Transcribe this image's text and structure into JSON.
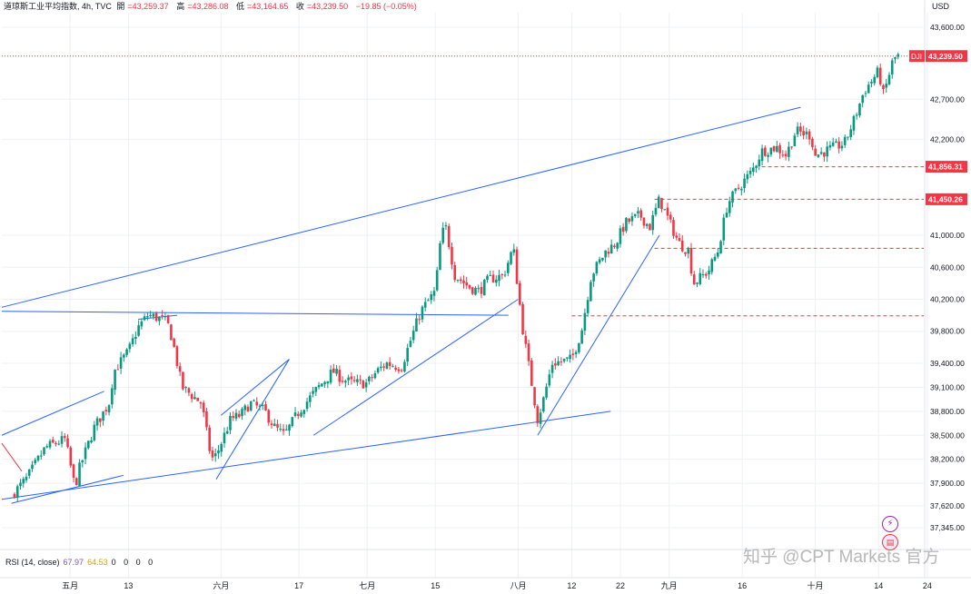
{
  "header": {
    "symbol": "道琼斯工业平均指数, 4h, TVC",
    "open_label": "開",
    "open": "=43,259.37",
    "high_label": "高",
    "high": "=43,286.08",
    "low_label": "低",
    "low": "=43,164.65",
    "close_label": "收",
    "close": "=43,239.50",
    "change": "−19.85 (−0.05%)"
  },
  "currency": "USD",
  "rsi": {
    "label": "RSI (14, close)",
    "value": "67.97",
    "ma": "64.53",
    "extra": "0 0 0 0"
  },
  "watermark": "知乎 @CPT Markets 官方",
  "colors": {
    "up": "#089981",
    "down": "#f23645",
    "trendline": "#2962ff",
    "level": "#f23645",
    "grid": "#eef0f4"
  },
  "icons": [
    "lightning-icon",
    "us-flag-icon"
  ],
  "chart_data": {
    "type": "candlestick",
    "title": "道琼斯工业平均指数, 4h, TVC",
    "ylabel": "USD",
    "y_ticks": [
      37345,
      37620,
      37900,
      38200,
      38500,
      38800,
      39100,
      39400,
      39800,
      40200,
      40600,
      41000,
      41450.26,
      41856.31,
      42200,
      42700,
      43239.5,
      43600
    ],
    "y_tick_labels": [
      "37,345.00",
      "37,620.00",
      "37,900.00",
      "38,200.00",
      "38,500.00",
      "38,800.00",
      "39,100.00",
      "39,400.00",
      "39,800.00",
      "40,200.00",
      "40,600.00",
      "41,000.00",
      "41,450.26",
      "41,856.31",
      "42,200.00",
      "42,700.00",
      "43,239.50",
      "43,600.00"
    ],
    "x_tick_labels": [
      "五月",
      "13",
      "六月",
      "17",
      "七月",
      "15",
      "八月",
      "12",
      "22",
      "九月",
      "16",
      "十月",
      "14",
      "24"
    ],
    "x_tick_dates": [
      "2024-05-01",
      "2024-05-13",
      "2024-06-01",
      "2024-06-17",
      "2024-07-01",
      "2024-07-15",
      "2024-08-01",
      "2024-08-12",
      "2024-08-22",
      "2024-09-01",
      "2024-09-16",
      "2024-10-01",
      "2024-10-14",
      "2024-10-24"
    ],
    "price_path": [
      [
        "2024-04-19",
        37750
      ],
      [
        "2024-04-22",
        37950
      ],
      [
        "2024-04-26",
        38350
      ],
      [
        "2024-04-30",
        38450
      ],
      [
        "2024-05-02",
        37850
      ],
      [
        "2024-05-03",
        38100
      ],
      [
        "2024-05-06",
        38600
      ],
      [
        "2024-05-09",
        38900
      ],
      [
        "2024-05-10",
        39300
      ],
      [
        "2024-05-13",
        39550
      ],
      [
        "2024-05-15",
        39850
      ],
      [
        "2024-05-17",
        40003
      ],
      [
        "2024-05-20",
        39950
      ],
      [
        "2024-05-21",
        39900
      ],
      [
        "2024-05-22",
        39700
      ],
      [
        "2024-05-24",
        39100
      ],
      [
        "2024-05-28",
        38900
      ],
      [
        "2024-05-30",
        38200
      ],
      [
        "2024-05-31",
        38250
      ],
      [
        "2024-06-03",
        38700
      ],
      [
        "2024-06-05",
        38750
      ],
      [
        "2024-06-07",
        38900
      ],
      [
        "2024-06-10",
        38800
      ],
      [
        "2024-06-12",
        38600
      ],
      [
        "2024-06-14",
        38500
      ],
      [
        "2024-06-17",
        38800
      ],
      [
        "2024-06-19",
        38950
      ],
      [
        "2024-06-21",
        39100
      ],
      [
        "2024-06-24",
        39300
      ],
      [
        "2024-06-26",
        39200
      ],
      [
        "2024-06-28",
        39150
      ],
      [
        "2024-07-01",
        39150
      ],
      [
        "2024-07-03",
        39300
      ],
      [
        "2024-07-05",
        39400
      ],
      [
        "2024-07-08",
        39350
      ],
      [
        "2024-07-10",
        39700
      ],
      [
        "2024-07-12",
        40050
      ],
      [
        "2024-07-15",
        40300
      ],
      [
        "2024-07-16",
        40900
      ],
      [
        "2024-07-17",
        41150
      ],
      [
        "2024-07-19",
        40500
      ],
      [
        "2024-07-22",
        40350
      ],
      [
        "2024-07-24",
        40300
      ],
      [
        "2024-07-26",
        40450
      ],
      [
        "2024-07-29",
        40500
      ],
      [
        "2024-07-31",
        40850
      ],
      [
        "2024-08-01",
        40300
      ],
      [
        "2024-08-02",
        39800
      ],
      [
        "2024-08-05",
        38700
      ],
      [
        "2024-08-06",
        38900
      ],
      [
        "2024-08-08",
        39400
      ],
      [
        "2024-08-12",
        39450
      ],
      [
        "2024-08-14",
        39800
      ],
      [
        "2024-08-16",
        40500
      ],
      [
        "2024-08-19",
        40800
      ],
      [
        "2024-08-21",
        40900
      ],
      [
        "2024-08-23",
        41150
      ],
      [
        "2024-08-26",
        41250
      ],
      [
        "2024-08-28",
        41100
      ],
      [
        "2024-08-30",
        41450
      ],
      [
        "2024-09-03",
        40900
      ],
      [
        "2024-09-05",
        40800
      ],
      [
        "2024-09-06",
        40400
      ],
      [
        "2024-09-09",
        40550
      ],
      [
        "2024-09-11",
        40800
      ],
      [
        "2024-09-13",
        41400
      ],
      [
        "2024-09-16",
        41650
      ],
      [
        "2024-09-18",
        41800
      ],
      [
        "2024-09-20",
        42050
      ],
      [
        "2024-09-23",
        42100
      ],
      [
        "2024-09-25",
        42000
      ],
      [
        "2024-09-27",
        42300
      ],
      [
        "2024-09-30",
        42250
      ],
      [
        "2024-10-01",
        42000
      ],
      [
        "2024-10-03",
        42050
      ],
      [
        "2024-10-07",
        42150
      ],
      [
        "2024-10-09",
        42450
      ],
      [
        "2024-10-11",
        42800
      ],
      [
        "2024-10-14",
        43050
      ],
      [
        "2024-10-15",
        42750
      ],
      [
        "2024-10-17",
        43200
      ],
      [
        "2024-10-18",
        43239.5
      ]
    ],
    "horizontal_levels": [
      {
        "value": 41856.31,
        "label": "41,856.31",
        "from": "2024-09-20"
      },
      {
        "value": 41450.26,
        "label": "41,450.26",
        "from": "2024-08-29"
      },
      {
        "value": 40837.74,
        "label": "40,837.74",
        "from": "2024-08-29"
      },
      {
        "value": 39992.55,
        "label": "39,992.55",
        "from": "2024-08-12"
      }
    ],
    "trendlines": [
      [
        [
          "2024-04-17",
          40100
        ],
        [
          "2024-09-28",
          42600
        ]
      ],
      [
        [
          "2024-04-17",
          40050
        ],
        [
          "2024-07-30",
          40000
        ]
      ],
      [
        [
          "2024-04-17",
          37700
        ],
        [
          "2024-08-20",
          38800
        ]
      ],
      [
        [
          "2024-04-17",
          38500
        ],
        [
          "2024-05-08",
          39050
        ]
      ],
      [
        [
          "2024-04-19",
          37650
        ],
        [
          "2024-05-12",
          38000
        ]
      ],
      [
        [
          "2024-05-15",
          39950
        ],
        [
          "2024-05-23",
          40000
        ]
      ],
      [
        [
          "2024-05-31",
          37950
        ],
        [
          "2024-06-15",
          39450
        ]
      ],
      [
        [
          "2024-06-01",
          38750
        ],
        [
          "2024-06-15",
          39450
        ]
      ],
      [
        [
          "2024-06-20",
          38500
        ],
        [
          "2024-08-01",
          40200
        ]
      ],
      [
        [
          "2024-08-05",
          38500
        ],
        [
          "2024-08-30",
          41000
        ]
      ]
    ],
    "current_price": {
      "symbol": "DJI",
      "value": 43239.5,
      "label": "43,239.50"
    }
  }
}
